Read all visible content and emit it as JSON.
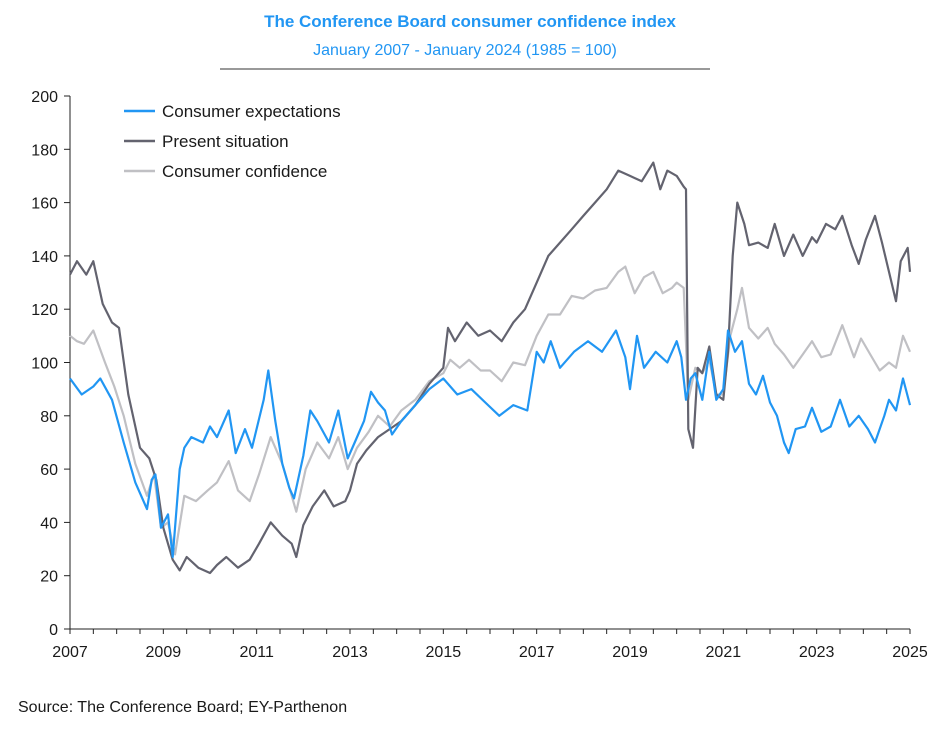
{
  "chart_data": {
    "type": "line",
    "title": "The Conference Board consumer confidence index",
    "subtitle": "January 2007 - January 2024 (1985 = 100)",
    "source": "Source: The Conference Board; EY-Parthenon",
    "xlabel": "",
    "ylabel": "",
    "xlim": [
      2007,
      2025
    ],
    "ylim": [
      0,
      200
    ],
    "x_ticks": [
      "2007",
      "2009",
      "2011",
      "2013",
      "2015",
      "2017",
      "2019",
      "2021",
      "2023",
      "2025"
    ],
    "y_ticks": [
      "0",
      "20",
      "40",
      "60",
      "80",
      "100",
      "120",
      "140",
      "160",
      "180",
      "200"
    ],
    "grid": false,
    "legend_position": "top-left",
    "series": [
      {
        "name": "Consumer expectations",
        "color": "#2196f3",
        "points": [
          [
            2007.0,
            94
          ],
          [
            2007.25,
            88
          ],
          [
            2007.5,
            91
          ],
          [
            2007.65,
            94
          ],
          [
            2007.9,
            86
          ],
          [
            2008.15,
            70
          ],
          [
            2008.4,
            55
          ],
          [
            2008.65,
            45
          ],
          [
            2008.75,
            56
          ],
          [
            2008.83,
            58
          ],
          [
            2008.95,
            38
          ],
          [
            2009.1,
            43
          ],
          [
            2009.2,
            27
          ],
          [
            2009.35,
            60
          ],
          [
            2009.45,
            68
          ],
          [
            2009.6,
            72
          ],
          [
            2009.85,
            70
          ],
          [
            2010.0,
            76
          ],
          [
            2010.15,
            72
          ],
          [
            2010.4,
            82
          ],
          [
            2010.55,
            66
          ],
          [
            2010.75,
            75
          ],
          [
            2010.9,
            68
          ],
          [
            2011.15,
            86
          ],
          [
            2011.25,
            97
          ],
          [
            2011.4,
            78
          ],
          [
            2011.55,
            62
          ],
          [
            2011.7,
            53
          ],
          [
            2011.8,
            49
          ],
          [
            2012.0,
            65
          ],
          [
            2012.15,
            82
          ],
          [
            2012.3,
            78
          ],
          [
            2012.55,
            70
          ],
          [
            2012.75,
            82
          ],
          [
            2012.95,
            64
          ],
          [
            2013.1,
            70
          ],
          [
            2013.3,
            78
          ],
          [
            2013.45,
            89
          ],
          [
            2013.6,
            85
          ],
          [
            2013.75,
            82
          ],
          [
            2013.9,
            73
          ],
          [
            2014.1,
            78
          ],
          [
            2014.4,
            84
          ],
          [
            2014.7,
            90
          ],
          [
            2015.0,
            94
          ],
          [
            2015.3,
            88
          ],
          [
            2015.6,
            90
          ],
          [
            2015.9,
            85
          ],
          [
            2016.2,
            80
          ],
          [
            2016.5,
            84
          ],
          [
            2016.8,
            82
          ],
          [
            2017.0,
            104
          ],
          [
            2017.15,
            100
          ],
          [
            2017.3,
            108
          ],
          [
            2017.5,
            98
          ],
          [
            2017.8,
            104
          ],
          [
            2018.1,
            108
          ],
          [
            2018.4,
            104
          ],
          [
            2018.7,
            112
          ],
          [
            2018.9,
            102
          ],
          [
            2019.0,
            90
          ],
          [
            2019.15,
            110
          ],
          [
            2019.3,
            98
          ],
          [
            2019.55,
            104
          ],
          [
            2019.8,
            100
          ],
          [
            2020.0,
            108
          ],
          [
            2020.1,
            102
          ],
          [
            2020.2,
            86
          ],
          [
            2020.3,
            94
          ],
          [
            2020.4,
            96
          ],
          [
            2020.55,
            86
          ],
          [
            2020.7,
            104
          ],
          [
            2020.85,
            86
          ],
          [
            2021.0,
            90
          ],
          [
            2021.1,
            112
          ],
          [
            2021.25,
            104
          ],
          [
            2021.4,
            108
          ],
          [
            2021.55,
            92
          ],
          [
            2021.7,
            88
          ],
          [
            2021.85,
            95
          ],
          [
            2022.0,
            85
          ],
          [
            2022.15,
            80
          ],
          [
            2022.3,
            70
          ],
          [
            2022.4,
            66
          ],
          [
            2022.55,
            75
          ],
          [
            2022.75,
            76
          ],
          [
            2022.9,
            83
          ],
          [
            2023.1,
            74
          ],
          [
            2023.3,
            76
          ],
          [
            2023.5,
            86
          ],
          [
            2023.7,
            76
          ],
          [
            2023.9,
            80
          ],
          [
            2024.1,
            75
          ],
          [
            2024.25,
            70
          ],
          [
            2024.45,
            80
          ],
          [
            2024.55,
            86
          ],
          [
            2024.7,
            82
          ],
          [
            2024.85,
            94
          ],
          [
            2025.0,
            84
          ]
        ]
      },
      {
        "name": "Present situation",
        "color": "#63636f",
        "points": [
          [
            2007.0,
            133
          ],
          [
            2007.15,
            138
          ],
          [
            2007.35,
            133
          ],
          [
            2007.5,
            138
          ],
          [
            2007.7,
            122
          ],
          [
            2007.9,
            115
          ],
          [
            2008.05,
            113
          ],
          [
            2008.25,
            88
          ],
          [
            2008.5,
            68
          ],
          [
            2008.7,
            64
          ],
          [
            2008.85,
            56
          ],
          [
            2009.0,
            38
          ],
          [
            2009.2,
            26
          ],
          [
            2009.35,
            22
          ],
          [
            2009.5,
            27
          ],
          [
            2009.75,
            23
          ],
          [
            2010.0,
            21
          ],
          [
            2010.15,
            24
          ],
          [
            2010.35,
            27
          ],
          [
            2010.6,
            23
          ],
          [
            2010.85,
            26
          ],
          [
            2011.05,
            32
          ],
          [
            2011.3,
            40
          ],
          [
            2011.55,
            35
          ],
          [
            2011.75,
            32
          ],
          [
            2011.85,
            27
          ],
          [
            2012.0,
            39
          ],
          [
            2012.2,
            46
          ],
          [
            2012.45,
            52
          ],
          [
            2012.65,
            46
          ],
          [
            2012.9,
            48
          ],
          [
            2013.0,
            52
          ],
          [
            2013.15,
            62
          ],
          [
            2013.35,
            67
          ],
          [
            2013.6,
            72
          ],
          [
            2013.85,
            75
          ],
          [
            2014.1,
            78
          ],
          [
            2014.4,
            84
          ],
          [
            2014.7,
            92
          ],
          [
            2015.0,
            98
          ],
          [
            2015.1,
            113
          ],
          [
            2015.25,
            108
          ],
          [
            2015.5,
            115
          ],
          [
            2015.75,
            110
          ],
          [
            2016.0,
            112
          ],
          [
            2016.25,
            108
          ],
          [
            2016.5,
            115
          ],
          [
            2016.75,
            120
          ],
          [
            2017.0,
            130
          ],
          [
            2017.25,
            140
          ],
          [
            2017.5,
            145
          ],
          [
            2017.75,
            150
          ],
          [
            2018.0,
            155
          ],
          [
            2018.25,
            160
          ],
          [
            2018.5,
            165
          ],
          [
            2018.75,
            172
          ],
          [
            2019.0,
            170
          ],
          [
            2019.25,
            168
          ],
          [
            2019.5,
            175
          ],
          [
            2019.65,
            165
          ],
          [
            2019.8,
            172
          ],
          [
            2020.0,
            170
          ],
          [
            2020.15,
            166
          ],
          [
            2020.2,
            165
          ],
          [
            2020.25,
            75
          ],
          [
            2020.35,
            68
          ],
          [
            2020.45,
            98
          ],
          [
            2020.55,
            96
          ],
          [
            2020.7,
            106
          ],
          [
            2020.85,
            88
          ],
          [
            2021.0,
            86
          ],
          [
            2021.1,
            104
          ],
          [
            2021.2,
            140
          ],
          [
            2021.3,
            160
          ],
          [
            2021.45,
            152
          ],
          [
            2021.55,
            144
          ],
          [
            2021.75,
            145
          ],
          [
            2021.95,
            143
          ],
          [
            2022.1,
            152
          ],
          [
            2022.3,
            140
          ],
          [
            2022.5,
            148
          ],
          [
            2022.7,
            140
          ],
          [
            2022.9,
            147
          ],
          [
            2023.0,
            145
          ],
          [
            2023.2,
            152
          ],
          [
            2023.4,
            150
          ],
          [
            2023.55,
            155
          ],
          [
            2023.75,
            144
          ],
          [
            2023.9,
            137
          ],
          [
            2024.05,
            146
          ],
          [
            2024.25,
            155
          ],
          [
            2024.4,
            145
          ],
          [
            2024.55,
            134
          ],
          [
            2024.7,
            123
          ],
          [
            2024.8,
            138
          ],
          [
            2024.95,
            143
          ],
          [
            2025.0,
            134
          ]
        ]
      },
      {
        "name": "Consumer confidence",
        "color": "#c0c0c4",
        "points": [
          [
            2007.0,
            110
          ],
          [
            2007.15,
            108
          ],
          [
            2007.3,
            107
          ],
          [
            2007.5,
            112
          ],
          [
            2007.75,
            100
          ],
          [
            2007.95,
            91
          ],
          [
            2008.15,
            80
          ],
          [
            2008.4,
            62
          ],
          [
            2008.65,
            50
          ],
          [
            2008.8,
            58
          ],
          [
            2008.95,
            38
          ],
          [
            2009.1,
            40
          ],
          [
            2009.25,
            28
          ],
          [
            2009.45,
            50
          ],
          [
            2009.7,
            48
          ],
          [
            2009.95,
            52
          ],
          [
            2010.15,
            55
          ],
          [
            2010.4,
            63
          ],
          [
            2010.6,
            52
          ],
          [
            2010.85,
            48
          ],
          [
            2011.05,
            58
          ],
          [
            2011.3,
            72
          ],
          [
            2011.55,
            62
          ],
          [
            2011.75,
            50
          ],
          [
            2011.85,
            44
          ],
          [
            2012.05,
            60
          ],
          [
            2012.3,
            70
          ],
          [
            2012.55,
            64
          ],
          [
            2012.75,
            72
          ],
          [
            2012.95,
            60
          ],
          [
            2013.15,
            68
          ],
          [
            2013.4,
            74
          ],
          [
            2013.6,
            80
          ],
          [
            2013.85,
            76
          ],
          [
            2014.1,
            82
          ],
          [
            2014.4,
            86
          ],
          [
            2014.7,
            93
          ],
          [
            2015.0,
            96
          ],
          [
            2015.15,
            101
          ],
          [
            2015.35,
            98
          ],
          [
            2015.55,
            101
          ],
          [
            2015.8,
            97
          ],
          [
            2016.0,
            97
          ],
          [
            2016.25,
            93
          ],
          [
            2016.5,
            100
          ],
          [
            2016.75,
            99
          ],
          [
            2017.0,
            110
          ],
          [
            2017.25,
            118
          ],
          [
            2017.5,
            118
          ],
          [
            2017.75,
            125
          ],
          [
            2018.0,
            124
          ],
          [
            2018.25,
            127
          ],
          [
            2018.5,
            128
          ],
          [
            2018.75,
            134
          ],
          [
            2018.9,
            136
          ],
          [
            2019.1,
            126
          ],
          [
            2019.3,
            132
          ],
          [
            2019.5,
            134
          ],
          [
            2019.7,
            126
          ],
          [
            2019.9,
            128
          ],
          [
            2020.0,
            130
          ],
          [
            2020.15,
            128
          ],
          [
            2020.25,
            86
          ],
          [
            2020.4,
            98
          ],
          [
            2020.55,
            96
          ],
          [
            2020.7,
            101
          ],
          [
            2020.85,
            88
          ],
          [
            2021.0,
            88
          ],
          [
            2021.15,
            110
          ],
          [
            2021.3,
            120
          ],
          [
            2021.4,
            128
          ],
          [
            2021.55,
            113
          ],
          [
            2021.75,
            109
          ],
          [
            2021.95,
            113
          ],
          [
            2022.1,
            107
          ],
          [
            2022.3,
            103
          ],
          [
            2022.5,
            98
          ],
          [
            2022.7,
            103
          ],
          [
            2022.9,
            108
          ],
          [
            2023.1,
            102
          ],
          [
            2023.3,
            103
          ],
          [
            2023.55,
            114
          ],
          [
            2023.8,
            102
          ],
          [
            2023.95,
            109
          ],
          [
            2024.15,
            103
          ],
          [
            2024.35,
            97
          ],
          [
            2024.55,
            100
          ],
          [
            2024.7,
            98
          ],
          [
            2024.85,
            110
          ],
          [
            2025.0,
            104
          ]
        ]
      }
    ]
  }
}
